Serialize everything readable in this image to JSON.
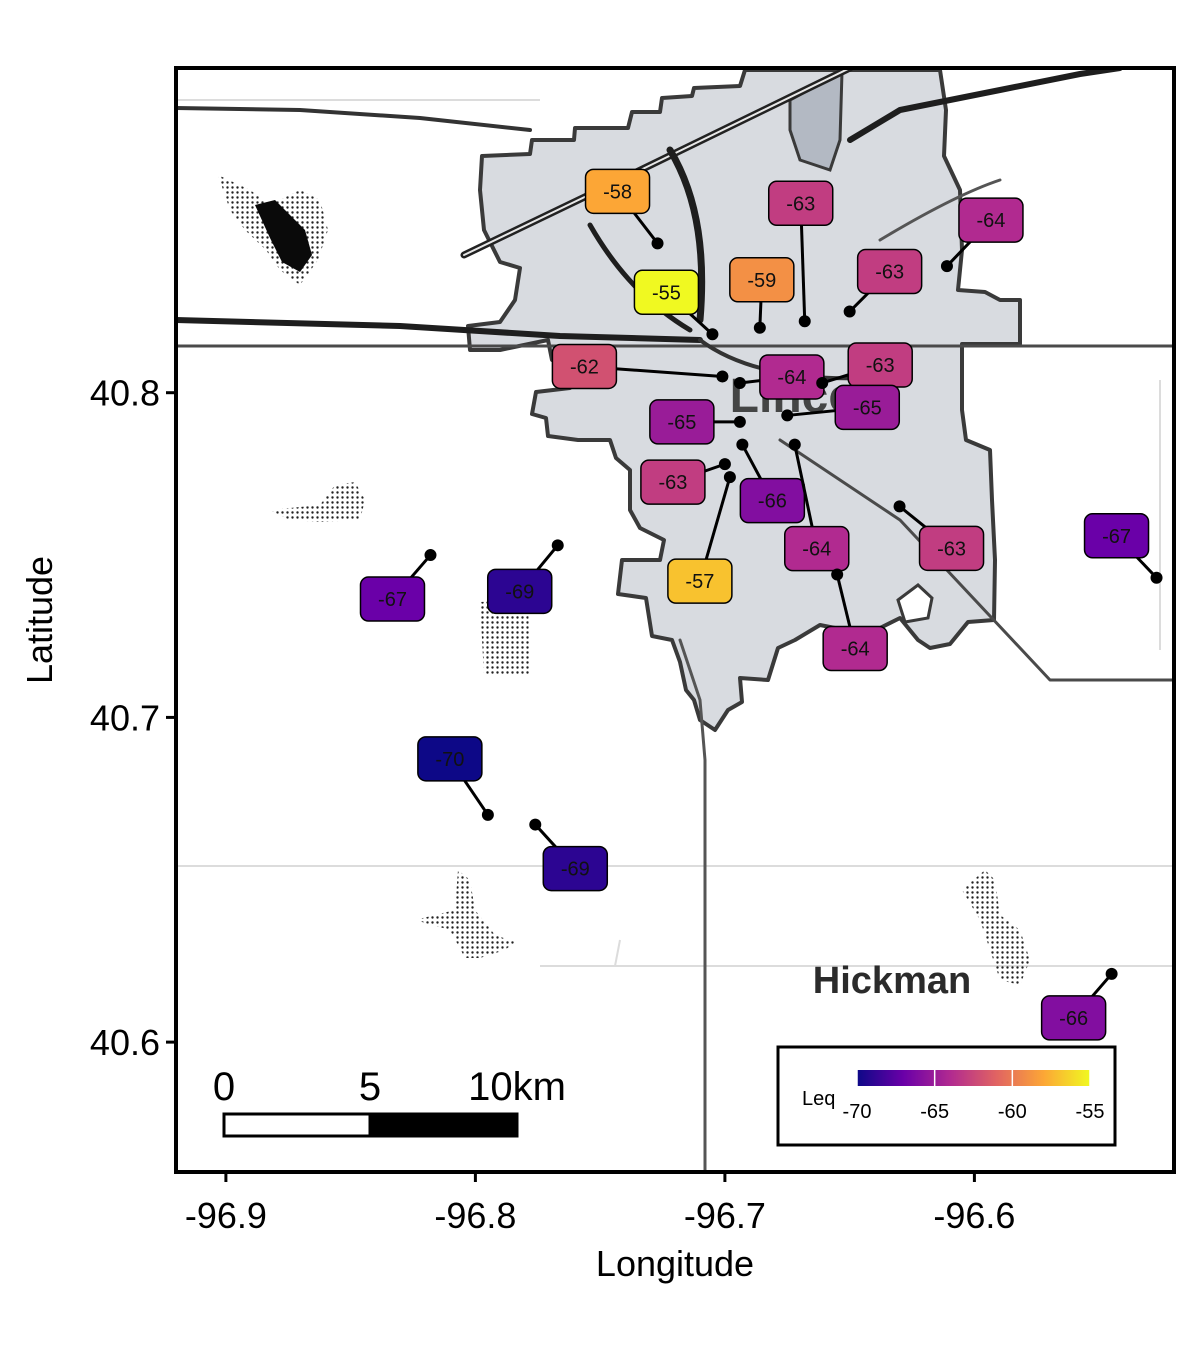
{
  "chart_data": {
    "type": "scatter",
    "xlabel": "Longitude",
    "ylabel": "Latitude",
    "xlim": [
      -96.92,
      -96.52
    ],
    "ylim": [
      40.56,
      40.9
    ],
    "x_ticks": [
      {
        "value": -96.9,
        "label": "-96.9"
      },
      {
        "value": -96.8,
        "label": "-96.8"
      },
      {
        "value": -96.7,
        "label": "-96.7"
      },
      {
        "value": -96.6,
        "label": "-96.6"
      }
    ],
    "y_ticks": [
      {
        "value": 40.6,
        "label": "40.6"
      },
      {
        "value": 40.7,
        "label": "40.7"
      },
      {
        "value": 40.8,
        "label": "40.8"
      }
    ],
    "map_labels": {
      "city": "Lincoln",
      "town": "Hickman"
    },
    "points": [
      {
        "lon": -96.727,
        "lat": 40.846,
        "leq": -58
      },
      {
        "lon": -96.668,
        "lat": 40.822,
        "leq": -63
      },
      {
        "lon": -96.611,
        "lat": 40.839,
        "leq": -64
      },
      {
        "lon": -96.65,
        "lat": 40.825,
        "leq": -63
      },
      {
        "lon": -96.686,
        "lat": 40.82,
        "leq": -59
      },
      {
        "lon": -96.705,
        "lat": 40.818,
        "leq": -55
      },
      {
        "lon": -96.701,
        "lat": 40.805,
        "leq": -62
      },
      {
        "lon": -96.694,
        "lat": 40.803,
        "leq": -64
      },
      {
        "lon": -96.661,
        "lat": 40.803,
        "leq": -63
      },
      {
        "lon": -96.694,
        "lat": 40.791,
        "leq": -65
      },
      {
        "lon": -96.675,
        "lat": 40.793,
        "leq": -65
      },
      {
        "lon": -96.693,
        "lat": 40.784,
        "leq": -66
      },
      {
        "lon": -96.7,
        "lat": 40.778,
        "leq": -63
      },
      {
        "lon": -96.672,
        "lat": 40.784,
        "leq": -64
      },
      {
        "lon": -96.698,
        "lat": 40.774,
        "leq": -57
      },
      {
        "lon": -96.655,
        "lat": 40.744,
        "leq": -64
      },
      {
        "lon": -96.63,
        "lat": 40.765,
        "leq": -63
      },
      {
        "lon": -96.527,
        "lat": 40.743,
        "leq": -67
      },
      {
        "lon": -96.818,
        "lat": 40.75,
        "leq": -67
      },
      {
        "lon": -96.767,
        "lat": 40.753,
        "leq": -69
      },
      {
        "lon": -96.795,
        "lat": 40.67,
        "leq": -70
      },
      {
        "lon": -96.776,
        "lat": 40.667,
        "leq": -69
      },
      {
        "lon": -96.545,
        "lat": 40.621,
        "leq": -66
      }
    ],
    "legend": {
      "title": "Leq",
      "min": -70,
      "max": -55,
      "ticks": [
        {
          "value": -70,
          "label": "-70"
        },
        {
          "value": -65,
          "label": "-65"
        },
        {
          "value": -60,
          "label": "-60"
        },
        {
          "value": -55,
          "label": "-55"
        }
      ],
      "colors": [
        "#0d0887",
        "#6a00a8",
        "#b12a90",
        "#e16462",
        "#fca636",
        "#f0f921"
      ]
    },
    "scale_bar": {
      "labels": [
        "0",
        "5",
        "10km"
      ]
    }
  }
}
